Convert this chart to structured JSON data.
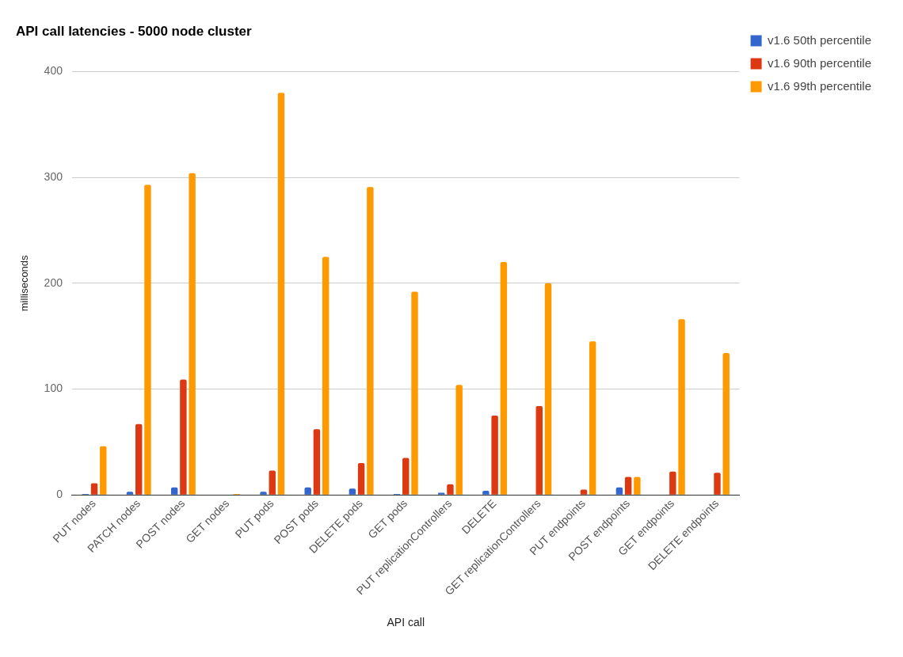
{
  "chart_data": {
    "type": "bar",
    "title": "API call latencies - 5000 node cluster",
    "xlabel": "API call",
    "ylabel": "milliseconds",
    "categories": [
      "PUT nodes",
      "PATCH nodes",
      "POST nodes",
      "GET nodes",
      "PUT pods",
      "POST pods",
      "DELETE pods",
      "GET pods",
      "PUT replicationControllers",
      "DELETE",
      "GET replicationControllers",
      "PUT endpoints",
      "POST endpoints",
      "GET endpoints",
      "DELETE endpoints"
    ],
    "series": [
      {
        "name": "v1.6 50th percentile",
        "color": "#3366cc",
        "values": [
          1,
          3,
          7,
          0,
          3,
          7,
          6,
          1,
          2,
          4,
          0,
          0,
          7,
          0,
          0
        ]
      },
      {
        "name": "v1.6 90th percentile",
        "color": "#dc3912",
        "values": [
          11,
          67,
          109,
          0,
          23,
          62,
          30,
          35,
          10,
          75,
          84,
          5,
          17,
          22,
          21
        ]
      },
      {
        "name": "v1.6 99th percentile",
        "color": "#ff9900",
        "values": [
          46,
          293,
          304,
          1,
          380,
          225,
          291,
          192,
          104,
          220,
          200,
          145,
          17,
          166,
          134
        ]
      }
    ],
    "ylim": [
      0,
      400
    ],
    "yticks": [
      0,
      100,
      200,
      300,
      400
    ],
    "grid": "y",
    "legend": "right"
  }
}
